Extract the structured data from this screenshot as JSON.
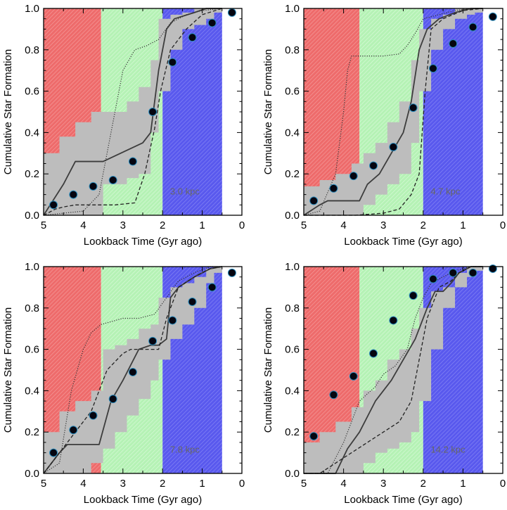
{
  "colors": {
    "red": "#ee6b6b",
    "green": "#b5f2b5",
    "blue": "#5959ee",
    "band": "#bdbdbd",
    "median": "#3d3d3d",
    "dashed": "#222222",
    "dotted": "#333333",
    "marker": "#050510",
    "marker_edge": "#2b8dbf"
  },
  "chart_data": [
    {
      "type": "line",
      "panel": "top-left",
      "annotation": "3.0 kpc",
      "xlabel": "Lookback Time (Gyr ago)",
      "ylabel": "Cumulative Star Formation",
      "xlim": [
        5,
        0
      ],
      "ylim": [
        0,
        1.0
      ],
      "xticks": [
        5,
        4,
        3,
        2,
        1,
        0
      ],
      "xtick_labels": [
        "5",
        "4",
        "3",
        "2",
        "1",
        "0"
      ],
      "yticks": [
        0,
        0.2,
        0.4,
        0.6,
        0.8,
        1.0
      ],
      "ytick_labels": [
        "0.0",
        "0.2",
        "0.4",
        "0.6",
        "0.8",
        "1.0"
      ],
      "shaded_regions": [
        {
          "name": "red",
          "from": 5,
          "to": 3.55
        },
        {
          "name": "green",
          "from": 3.55,
          "to": 2.0
        },
        {
          "name": "blue",
          "from": 2.0,
          "to": 0.5
        }
      ],
      "band": {
        "edges": [
          5,
          4.6,
          4.2,
          3.8,
          3.5,
          3.2,
          2.9,
          2.6,
          2.3,
          2.1,
          1.8,
          1.5,
          1.2,
          0.9,
          0.7,
          0.5
        ],
        "upper": [
          0.3,
          0.38,
          0.45,
          0.5,
          0.5,
          0.5,
          0.55,
          0.62,
          0.75,
          0.95,
          0.97,
          0.98,
          1.0,
          1.0,
          1.0
        ],
        "lower": [
          0.0,
          0.0,
          0.0,
          0.0,
          0.15,
          0.15,
          0.18,
          0.2,
          0.4,
          0.6,
          0.8,
          0.9,
          0.92,
          0.95,
          0.98
        ]
      },
      "series": [
        {
          "name": "median",
          "style": "solid",
          "x": [
            5,
            4.5,
            4.2,
            3.6,
            3.5,
            2.5,
            2.3,
            2.1,
            1.9,
            1.7,
            1.2,
            0.9,
            0.5
          ],
          "y": [
            0.0,
            0.15,
            0.26,
            0.26,
            0.26,
            0.35,
            0.4,
            0.7,
            0.9,
            0.95,
            0.98,
            1.0,
            1.0
          ]
        },
        {
          "name": "dashed",
          "style": "dashed",
          "x": [
            5,
            4.7,
            4.5,
            4.2,
            3.6,
            3.2,
            2.7,
            2.45,
            2.2,
            2.05,
            1.8,
            1.4,
            1.0,
            0.5
          ],
          "y": [
            0.0,
            0.03,
            0.04,
            0.05,
            0.05,
            0.05,
            0.06,
            0.2,
            0.42,
            0.6,
            0.8,
            0.9,
            0.97,
            1.0
          ]
        },
        {
          "name": "dotted",
          "style": "dotted",
          "x": [
            5,
            4.0,
            3.6,
            3.3,
            3.0,
            2.7,
            2.4,
            2.1,
            1.8,
            1.4,
            1.0,
            0.5
          ],
          "y": [
            0.0,
            0.02,
            0.1,
            0.4,
            0.7,
            0.8,
            0.82,
            0.85,
            0.93,
            0.97,
            0.99,
            1.0
          ]
        },
        {
          "name": "points",
          "style": "markers",
          "x": [
            4.75,
            4.25,
            3.75,
            3.25,
            2.75,
            2.25,
            1.75,
            1.25,
            0.75,
            0.25
          ],
          "y": [
            0.05,
            0.1,
            0.14,
            0.17,
            0.26,
            0.5,
            0.74,
            0.86,
            0.93,
            0.98
          ]
        }
      ]
    },
    {
      "type": "line",
      "panel": "top-right",
      "annotation": "4.7 kpc",
      "xlabel": "Lookback Time (Gyr ago)",
      "ylabel": "Cumulative Star Formation",
      "xlim": [
        5,
        0
      ],
      "ylim": [
        0,
        1.0
      ],
      "xticks": [
        5,
        4,
        3,
        2,
        1,
        0
      ],
      "xtick_labels": [
        "5",
        "4",
        "3",
        "2",
        "1",
        "0"
      ],
      "yticks": [
        0,
        0.2,
        0.4,
        0.6,
        0.8,
        1.0
      ],
      "ytick_labels": [
        "0.0",
        "0.2",
        "0.4",
        "0.6",
        "0.8",
        "1.0"
      ],
      "shaded_regions": [
        {
          "name": "red",
          "from": 5,
          "to": 3.6
        },
        {
          "name": "green",
          "from": 3.6,
          "to": 2.0
        },
        {
          "name": "blue",
          "from": 2.0,
          "to": 0.5
        }
      ],
      "band": {
        "edges": [
          5,
          4.6,
          4.2,
          3.8,
          3.5,
          3.2,
          2.9,
          2.6,
          2.3,
          2.1,
          1.8,
          1.5,
          1.2,
          0.9,
          0.7,
          0.5
        ],
        "upper": [
          0.14,
          0.17,
          0.2,
          0.25,
          0.3,
          0.35,
          0.45,
          0.55,
          0.75,
          0.9,
          0.95,
          0.97,
          1.0,
          1.0,
          1.0
        ],
        "lower": [
          0.0,
          0.0,
          0.0,
          0.0,
          0.05,
          0.1,
          0.15,
          0.2,
          0.35,
          0.6,
          0.8,
          0.9,
          0.95,
          0.97,
          0.98
        ]
      },
      "series": [
        {
          "name": "median",
          "style": "solid",
          "x": [
            5,
            4.6,
            4.4,
            3.6,
            3.4,
            3.1,
            2.8,
            2.5,
            2.3,
            2.1,
            1.9,
            1.6,
            1.2,
            0.8,
            0.5
          ],
          "y": [
            0.0,
            0.05,
            0.07,
            0.07,
            0.15,
            0.2,
            0.3,
            0.4,
            0.55,
            0.8,
            0.9,
            0.95,
            0.98,
            1.0,
            1.0
          ]
        },
        {
          "name": "dashed",
          "style": "dashed",
          "x": [
            5,
            3.7,
            3.0,
            2.6,
            2.3,
            2.1,
            1.95,
            1.8,
            1.5,
            1.0,
            0.5
          ],
          "y": [
            0.0,
            0.0,
            0.01,
            0.03,
            0.1,
            0.2,
            0.6,
            0.9,
            0.95,
            0.99,
            1.0
          ]
        },
        {
          "name": "dotted",
          "style": "dotted",
          "x": [
            5,
            4.6,
            4.2,
            4.0,
            3.9,
            3.8,
            3.6,
            3.0,
            2.6,
            2.4,
            2.2,
            2.0,
            1.6,
            1.2,
            0.8,
            0.5
          ],
          "y": [
            0.0,
            0.02,
            0.2,
            0.5,
            0.7,
            0.77,
            0.77,
            0.77,
            0.78,
            0.82,
            0.88,
            0.95,
            0.97,
            0.99,
            1.0,
            1.0
          ]
        },
        {
          "name": "points",
          "style": "markers",
          "x": [
            4.75,
            4.25,
            3.75,
            3.25,
            2.75,
            2.25,
            1.75,
            1.25,
            0.75,
            0.25
          ],
          "y": [
            0.07,
            0.13,
            0.19,
            0.24,
            0.33,
            0.52,
            0.71,
            0.83,
            0.91,
            0.96
          ]
        }
      ]
    },
    {
      "type": "line",
      "panel": "bottom-left",
      "annotation": "7.8 kpc",
      "xlabel": "Lookback Time (Gyr ago)",
      "ylabel": "Cumulative Star Formation",
      "xlim": [
        5,
        0
      ],
      "ylim": [
        0,
        1.0
      ],
      "xticks": [
        5,
        4,
        3,
        2,
        1,
        0
      ],
      "xtick_labels": [
        "5",
        "4",
        "3",
        "2",
        "1",
        "0"
      ],
      "yticks": [
        0,
        0.2,
        0.4,
        0.6,
        0.8,
        1.0
      ],
      "ytick_labels": [
        "0.0",
        "0.2",
        "0.4",
        "0.6",
        "0.8",
        "1.0"
      ],
      "shaded_regions": [
        {
          "name": "red",
          "from": 5,
          "to": 3.55
        },
        {
          "name": "green",
          "from": 3.55,
          "to": 2.0
        },
        {
          "name": "blue",
          "from": 2.0,
          "to": 0.5
        }
      ],
      "band": {
        "edges": [
          5,
          4.6,
          4.2,
          3.8,
          3.5,
          3.2,
          2.9,
          2.6,
          2.3,
          2.1,
          1.8,
          1.5,
          1.2,
          0.9,
          0.7,
          0.5
        ],
        "upper": [
          0.2,
          0.3,
          0.35,
          0.4,
          0.6,
          0.62,
          0.65,
          0.7,
          0.72,
          0.85,
          0.9,
          0.92,
          0.95,
          0.99,
          1.0
        ],
        "lower": [
          0.0,
          0.0,
          0.0,
          0.05,
          0.12,
          0.2,
          0.28,
          0.36,
          0.45,
          0.55,
          0.65,
          0.72,
          0.8,
          0.92,
          0.97
        ]
      },
      "series": [
        {
          "name": "median",
          "style": "solid",
          "x": [
            5,
            4.6,
            4.4,
            3.6,
            3.3,
            3.0,
            2.6,
            2.3,
            2.1,
            1.9,
            1.8,
            1.6,
            1.2,
            0.8,
            0.5
          ],
          "y": [
            0.0,
            0.1,
            0.14,
            0.14,
            0.35,
            0.45,
            0.6,
            0.62,
            0.62,
            0.65,
            0.85,
            0.9,
            0.95,
            0.99,
            1.0
          ]
        },
        {
          "name": "dashed",
          "style": "dashed",
          "x": [
            5,
            4.6,
            4.2,
            3.8,
            3.4,
            3.0,
            2.8,
            2.5,
            2.1,
            1.9,
            1.6,
            1.2,
            0.8,
            0.5
          ],
          "y": [
            0.0,
            0.1,
            0.2,
            0.3,
            0.5,
            0.58,
            0.6,
            0.6,
            0.6,
            0.75,
            0.9,
            0.95,
            0.99,
            1.0
          ]
        },
        {
          "name": "dotted",
          "style": "dotted",
          "x": [
            5,
            4.6,
            4.3,
            4.0,
            3.8,
            3.55,
            3.0,
            2.6,
            2.2,
            1.9,
            1.6,
            1.2,
            0.8,
            0.5
          ],
          "y": [
            0.0,
            0.05,
            0.4,
            0.6,
            0.68,
            0.72,
            0.75,
            0.75,
            0.77,
            0.85,
            0.93,
            0.97,
            1.0,
            1.0
          ]
        },
        {
          "name": "points",
          "style": "markers",
          "x": [
            4.75,
            4.25,
            3.75,
            3.25,
            2.75,
            2.25,
            1.75,
            1.25,
            0.75,
            0.25
          ],
          "y": [
            0.1,
            0.21,
            0.28,
            0.36,
            0.49,
            0.64,
            0.74,
            0.83,
            0.9,
            0.97
          ]
        }
      ]
    },
    {
      "type": "line",
      "panel": "bottom-right",
      "annotation": "14.2 kpc",
      "xlabel": "Lookback Time (Gyr ago)",
      "ylabel": "Cumulative Star Formation",
      "xlim": [
        5,
        0
      ],
      "ylim": [
        0,
        1.0
      ],
      "xticks": [
        5,
        4,
        3,
        2,
        1,
        0
      ],
      "xtick_labels": [
        "5",
        "4",
        "3",
        "2",
        "1",
        "0"
      ],
      "yticks": [
        0,
        0.2,
        0.4,
        0.6,
        0.8,
        1.0
      ],
      "ytick_labels": [
        "0.0",
        "0.2",
        "0.4",
        "0.6",
        "0.8",
        "1.0"
      ],
      "shaded_regions": [
        {
          "name": "red",
          "from": 5,
          "to": 3.6
        },
        {
          "name": "green",
          "from": 3.6,
          "to": 2.0
        },
        {
          "name": "blue",
          "from": 2.0,
          "to": 0.5
        }
      ],
      "band": {
        "edges": [
          5,
          4.6,
          4.2,
          3.8,
          3.5,
          3.2,
          2.9,
          2.6,
          2.3,
          2.1,
          1.8,
          1.5,
          1.2,
          0.9,
          0.7,
          0.5
        ],
        "upper": [
          0.15,
          0.2,
          0.25,
          0.32,
          0.4,
          0.45,
          0.55,
          0.6,
          0.7,
          0.8,
          0.88,
          0.9,
          0.97,
          1.0,
          1.0
        ],
        "lower": [
          0.0,
          0.0,
          0.0,
          0.0,
          0.05,
          0.1,
          0.12,
          0.15,
          0.2,
          0.35,
          0.6,
          0.8,
          0.9,
          0.95,
          0.98
        ]
      },
      "series": [
        {
          "name": "median",
          "style": "solid",
          "x": [
            5,
            4.2,
            3.9,
            3.6,
            3.2,
            2.8,
            2.5,
            2.2,
            1.9,
            1.7,
            1.5,
            1.3,
            1.1,
            0.8,
            0.5
          ],
          "y": [
            0.0,
            0.0,
            0.12,
            0.2,
            0.35,
            0.45,
            0.55,
            0.65,
            0.8,
            0.88,
            0.88,
            0.92,
            0.97,
            1.0,
            1.0
          ]
        },
        {
          "name": "dashed",
          "style": "dashed",
          "x": [
            5,
            4.6,
            4.2,
            3.8,
            3.4,
            3.0,
            2.6,
            2.3,
            2.1,
            1.9,
            1.6,
            1.3,
            1.1,
            0.8,
            0.5
          ],
          "y": [
            0.0,
            0.0,
            0.05,
            0.1,
            0.15,
            0.2,
            0.25,
            0.35,
            0.55,
            0.75,
            0.9,
            0.93,
            0.97,
            1.0,
            1.0
          ]
        },
        {
          "name": "dotted",
          "style": "dotted",
          "x": [
            5,
            4.4,
            4.0,
            3.6,
            3.2,
            3.0,
            2.7,
            2.4,
            2.2,
            2.0,
            1.8,
            1.5,
            1.2,
            0.8,
            0.5
          ],
          "y": [
            0.0,
            0.0,
            0.15,
            0.35,
            0.42,
            0.48,
            0.52,
            0.6,
            0.75,
            0.85,
            0.92,
            0.95,
            0.98,
            1.0,
            1.0
          ]
        },
        {
          "name": "points",
          "style": "markers",
          "x": [
            4.75,
            4.25,
            3.75,
            3.25,
            2.75,
            2.25,
            1.75,
            1.25,
            0.75,
            0.25
          ],
          "y": [
            0.18,
            0.38,
            0.47,
            0.58,
            0.74,
            0.86,
            0.94,
            0.97,
            0.97,
            0.99
          ]
        }
      ]
    }
  ]
}
